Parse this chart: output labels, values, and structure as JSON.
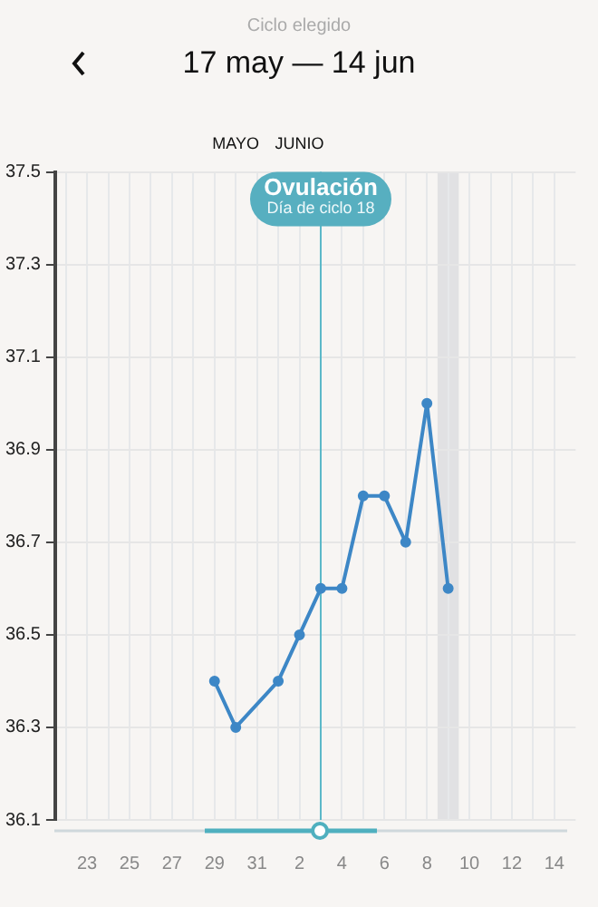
{
  "chart_data": {
    "type": "line",
    "subtitle": "Ciclo elegido",
    "title": "17 may — 14 jun",
    "x": [
      "--05-29",
      "--05-30",
      "--06-01",
      "--06-02",
      "--06-03",
      "--06-04",
      "--06-05",
      "--06-06",
      "--06-07",
      "--06-08",
      "--06-09"
    ],
    "series": [
      {
        "color": "#3d87c6",
        "values": [
          36.4,
          36.3,
          36.4,
          36.5,
          36.6,
          36.6,
          36.8,
          36.8,
          36.7,
          37.0,
          36.6
        ]
      }
    ],
    "xlim": [
      "--05-21T12:00",
      "--06-15"
    ],
    "xticks": [
      {
        "value": "--05-22",
        "label": null
      },
      {
        "value": "--05-23",
        "label": "23"
      },
      {
        "value": "--05-24",
        "label": null
      },
      {
        "value": "--05-25",
        "label": "25"
      },
      {
        "value": "--05-26",
        "label": null
      },
      {
        "value": "--05-27",
        "label": "27"
      },
      {
        "value": "--05-28",
        "label": null
      },
      {
        "value": "--05-29",
        "label": "29"
      },
      {
        "value": "--05-30",
        "label": null
      },
      {
        "value": "--05-31",
        "label": "31"
      },
      {
        "value": "--06-01",
        "label": null
      },
      {
        "value": "--06-02",
        "label": "2"
      },
      {
        "value": "--06-03",
        "label": null
      },
      {
        "value": "--06-04",
        "label": "4"
      },
      {
        "value": "--06-05",
        "label": null
      },
      {
        "value": "--06-06",
        "label": "6"
      },
      {
        "value": "--06-07",
        "label": null
      },
      {
        "value": "--06-08",
        "label": "8"
      },
      {
        "value": "--06-09",
        "label": null
      },
      {
        "value": "--06-10",
        "label": "10"
      },
      {
        "value": "--06-11",
        "label": null
      },
      {
        "value": "--06-12",
        "label": "12"
      },
      {
        "value": "--06-13",
        "label": null
      },
      {
        "value": "--06-14",
        "label": "14"
      }
    ],
    "x2lim": [
      "--05-21T12:00",
      "--06-15"
    ],
    "x2ticks": [
      {
        "value": "--05-30",
        "label": "MAYO"
      },
      {
        "value": "--06-02",
        "label": "JUNIO"
      }
    ],
    "ylim": [
      36.1,
      37.5
    ],
    "yticks": [
      36.1,
      36.3,
      36.5,
      36.7,
      36.9,
      37.1,
      37.3,
      37.5
    ],
    "grid": true,
    "legend": false,
    "marker": "circle",
    "line_style": "solid",
    "ref_lines": [
      {
        "axis": "x",
        "value": "--06-03",
        "label": "Ovulación",
        "color": "#5ab8c8"
      }
    ],
    "bands": [
      {
        "axis": "x",
        "from": "--06-08T12:00",
        "to": "--06-09T12:00",
        "color": "#d9d9dd"
      }
    ],
    "annotations": [
      {
        "text": "Día de ciclo 18",
        "x": "--06-03",
        "y": 37.42
      }
    ]
  }
}
